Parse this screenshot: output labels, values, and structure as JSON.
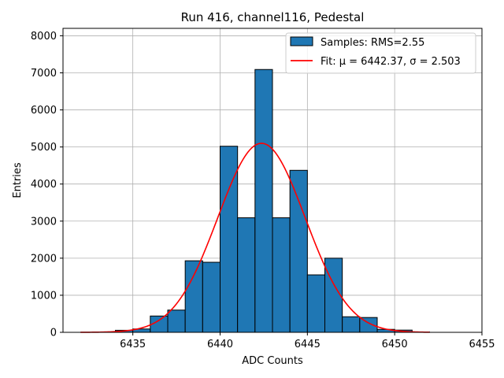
{
  "chart_data": {
    "type": "bar",
    "title": "Run 416, channel116, Pedestal",
    "xlabel": "ADC Counts",
    "ylabel": "Entries",
    "xlim": [
      6431,
      6455
    ],
    "ylim": [
      0,
      8200
    ],
    "xticks": [
      6435,
      6440,
      6445,
      6450,
      6455
    ],
    "yticks": [
      0,
      1000,
      2000,
      3000,
      4000,
      5000,
      6000,
      7000,
      8000
    ],
    "grid": true,
    "legend_position": "top-right",
    "histogram": {
      "name": "Samples: RMS=2.55",
      "bin_width": 1,
      "bin_starts": [
        6433,
        6434,
        6435,
        6436,
        6437,
        6438,
        6439,
        6440,
        6441,
        6442,
        6443,
        6444,
        6445,
        6446,
        6447,
        6448,
        6449,
        6450,
        6451
      ],
      "values": [
        10,
        55,
        90,
        440,
        600,
        1930,
        1890,
        5020,
        3090,
        7090,
        3090,
        4370,
        1550,
        2000,
        420,
        400,
        80,
        60,
        10
      ],
      "color": "#1f77b4",
      "edge_color": "#000000"
    },
    "fit": {
      "name": "Fit: μ = 6442.37, σ = 2.503",
      "mu": 6442.37,
      "sigma": 2.503,
      "amplitude": 5100,
      "x_range": [
        6432,
        6452
      ],
      "color": "#ff0000"
    }
  }
}
